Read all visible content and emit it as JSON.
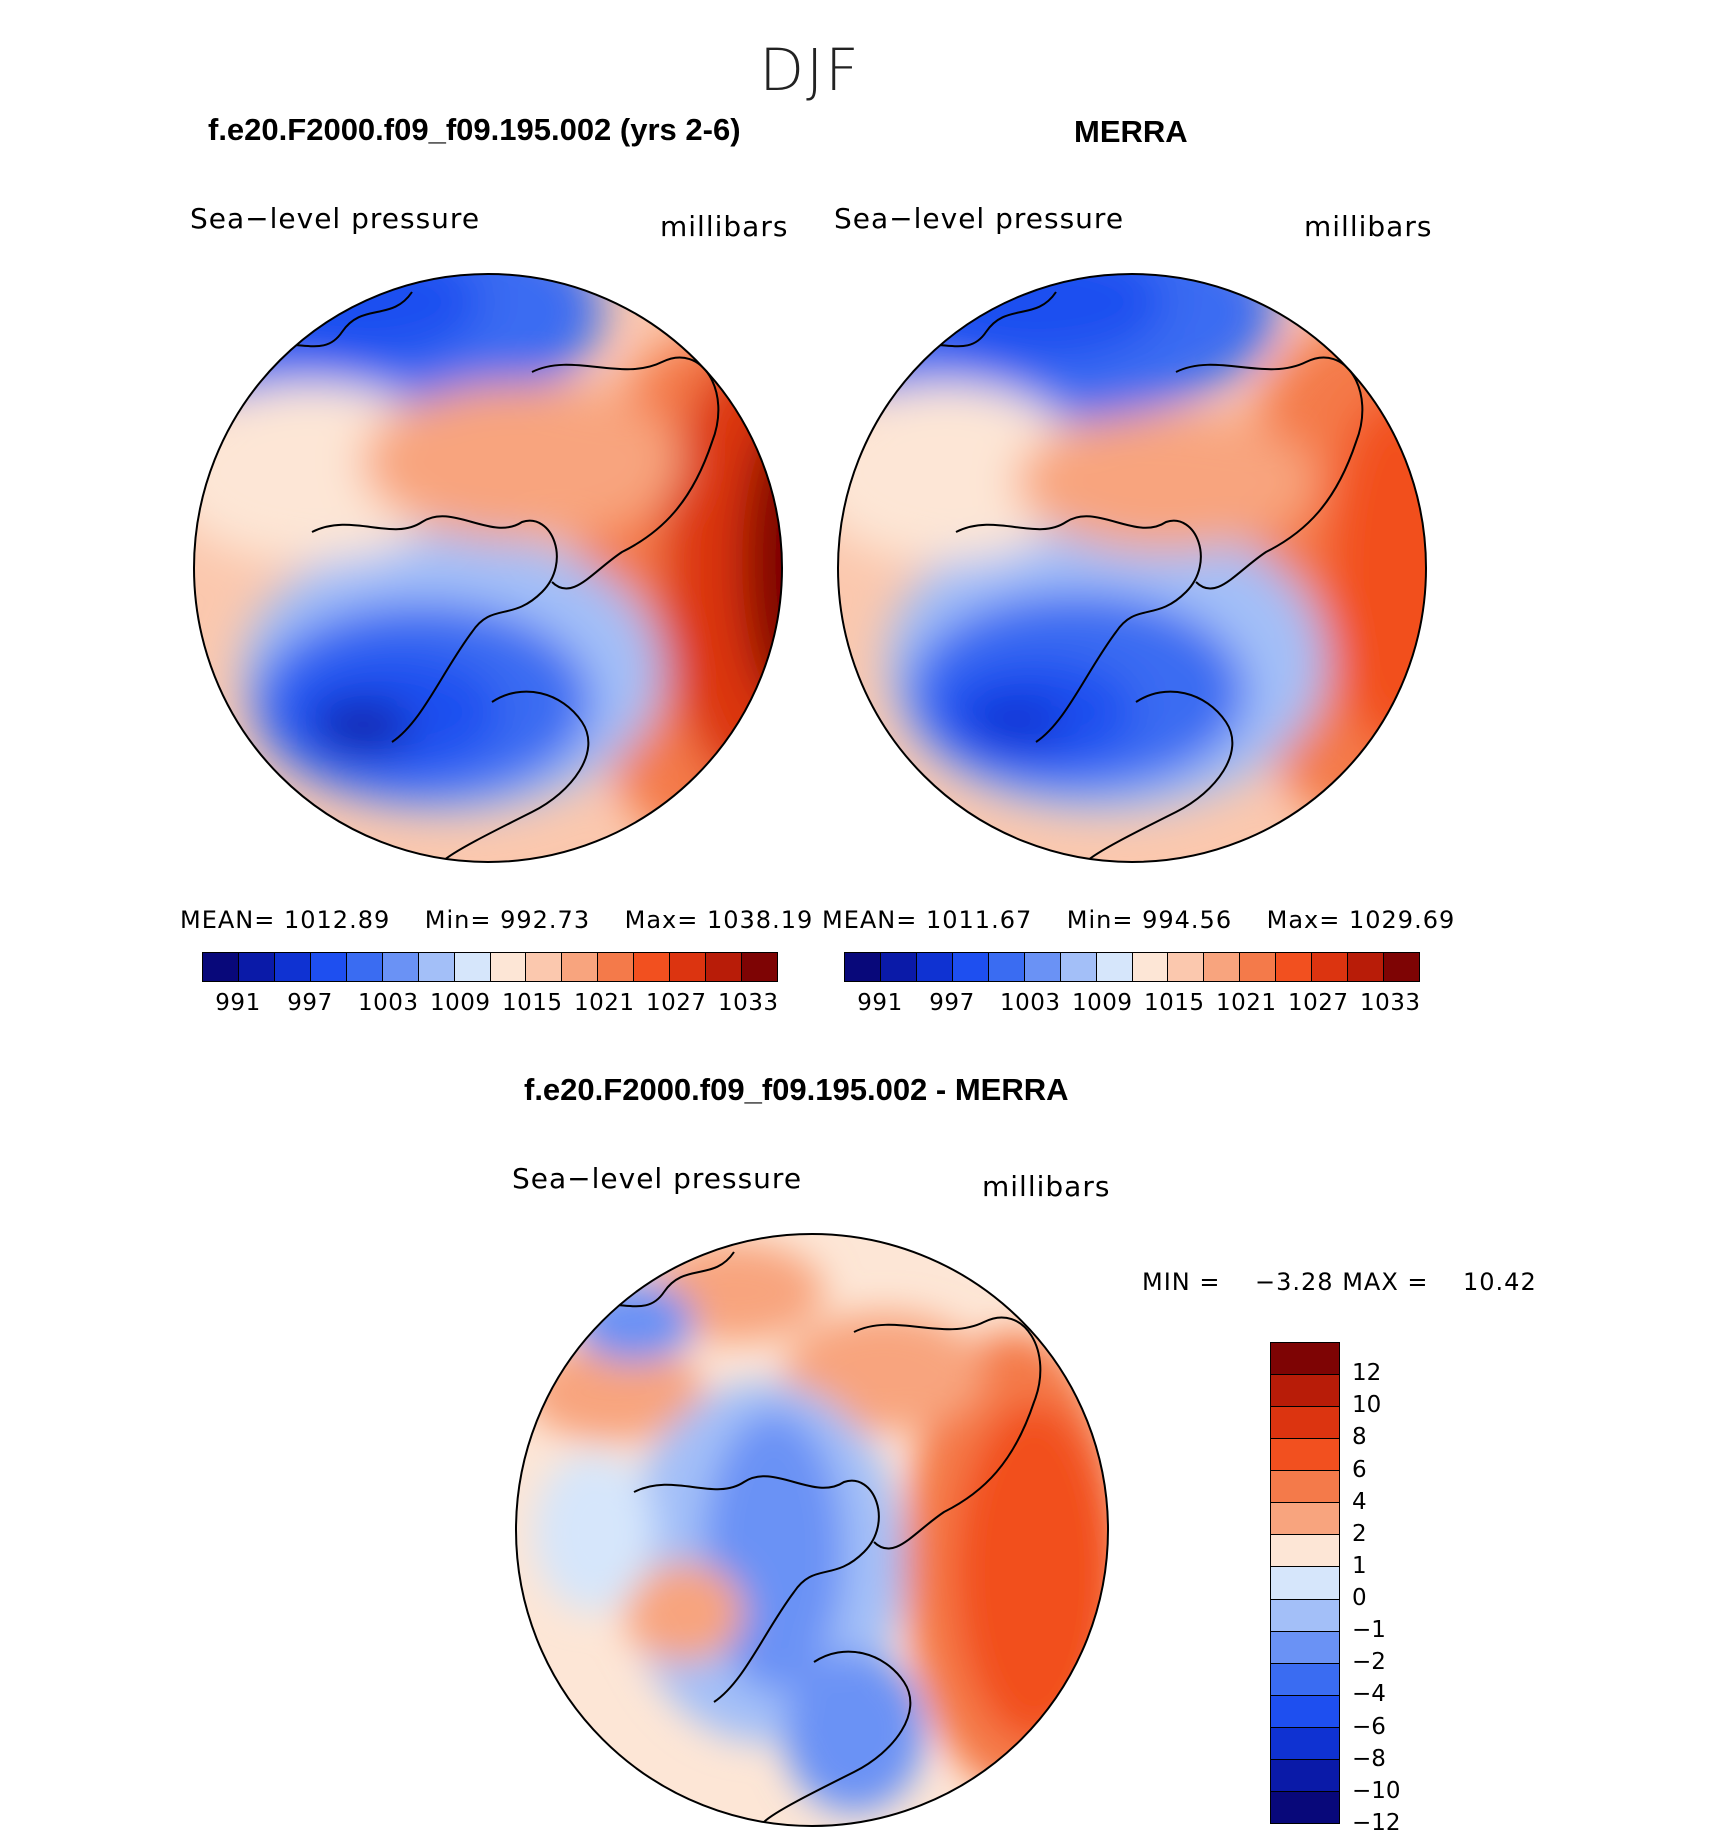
{
  "figure": {
    "season": "DJF"
  },
  "panels": [
    {
      "title": "f.e20.F2000.f09_f09.195.002 (yrs 2-6)",
      "variable": "Sea−level pressure",
      "units": "millibars",
      "stats": {
        "mean_label": "MEAN=",
        "mean": "1012.89",
        "min_label": "Min=",
        "min": "992.73",
        "max_label": "Max=",
        "max": "1038.19"
      }
    },
    {
      "title": "MERRA",
      "variable": "Sea−level pressure",
      "units": "millibars",
      "stats": {
        "mean_label": "MEAN=",
        "mean": "1011.67",
        "min_label": "Min=",
        "min": "994.56",
        "max_label": "Max=",
        "max": "1029.69"
      }
    }
  ],
  "diff_panel": {
    "title": "f.e20.F2000.f09_f09.195.002 - MERRA",
    "variable": "Sea−level pressure",
    "units": "millibars",
    "min_label": "MIN =",
    "min": "−3.28",
    "max_label": "MAX =",
    "max": "10.42"
  },
  "abs_colorbar": {
    "colors": [
      "#08087a",
      "#0a1aa8",
      "#0f32d2",
      "#1e4ff0",
      "#3a6cf2",
      "#6a92f5",
      "#a3bff8",
      "#d6e6fb",
      "#fde6d6",
      "#fbc8ae",
      "#f8a47e",
      "#f47a4a",
      "#f2501f",
      "#dc3410",
      "#b81c08",
      "#7e0404"
    ],
    "ticks": [
      "991",
      "997",
      "1003",
      "1009",
      "1015",
      "1021",
      "1027",
      "1033"
    ]
  },
  "diff_colorbar": {
    "colors": [
      "#7e0404",
      "#b81c08",
      "#dc3410",
      "#f2501f",
      "#f47a4a",
      "#f8a47e",
      "#fde6d6",
      "#d6e6fb",
      "#a3bff8",
      "#6a92f5",
      "#3a6cf2",
      "#1e4ff0",
      "#0f32d2",
      "#0a1aa8",
      "#08087a"
    ],
    "ticks": [
      "12",
      "10",
      "8",
      "6",
      "4",
      "2",
      "1",
      "0",
      "−1",
      "−2",
      "−4",
      "−6",
      "−8",
      "−10",
      "−12"
    ]
  }
}
